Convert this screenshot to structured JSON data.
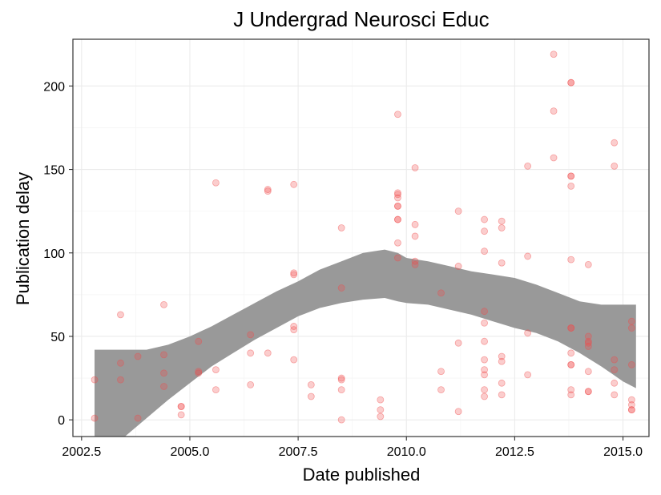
{
  "chart_data": {
    "type": "scatter",
    "title": "J Undergrad Neurosci Educ",
    "xlabel": "Date published",
    "ylabel": "Publication delay",
    "xlim": [
      2002.3,
      2015.6
    ],
    "ylim": [
      -10,
      228
    ],
    "x_ticks": [
      2002.5,
      2005.0,
      2007.5,
      2010.0,
      2012.5,
      2015.0
    ],
    "x_tick_labels": [
      "2002.5",
      "2005.0",
      "2007.5",
      "2010.0",
      "2012.5",
      "2015.0"
    ],
    "y_ticks": [
      0,
      50,
      100,
      150,
      200
    ],
    "y_tick_labels": [
      "0",
      "50",
      "100",
      "150",
      "200"
    ],
    "grid": true,
    "point_color": "#f04b4b",
    "band_color": "#999999",
    "points": [
      [
        2002.8,
        24
      ],
      [
        2002.8,
        1
      ],
      [
        2003.4,
        63
      ],
      [
        2003.4,
        24
      ],
      [
        2003.4,
        34
      ],
      [
        2003.8,
        38
      ],
      [
        2003.8,
        1
      ],
      [
        2004.4,
        69
      ],
      [
        2004.4,
        39
      ],
      [
        2004.4,
        28
      ],
      [
        2004.4,
        20
      ],
      [
        2004.8,
        8
      ],
      [
        2004.8,
        3
      ],
      [
        2004.8,
        8
      ],
      [
        2005.2,
        47
      ],
      [
        2005.2,
        29
      ],
      [
        2005.2,
        28
      ],
      [
        2005.6,
        142
      ],
      [
        2005.6,
        30
      ],
      [
        2005.6,
        18
      ],
      [
        2006.4,
        51
      ],
      [
        2006.4,
        40
      ],
      [
        2006.4,
        21
      ],
      [
        2006.8,
        138
      ],
      [
        2006.8,
        137
      ],
      [
        2006.8,
        40
      ],
      [
        2007.4,
        141
      ],
      [
        2007.4,
        88
      ],
      [
        2007.4,
        87
      ],
      [
        2007.4,
        56
      ],
      [
        2007.4,
        54
      ],
      [
        2007.4,
        36
      ],
      [
        2007.8,
        21
      ],
      [
        2007.8,
        14
      ],
      [
        2008.5,
        115
      ],
      [
        2008.5,
        79
      ],
      [
        2008.5,
        25
      ],
      [
        2008.5,
        24
      ],
      [
        2008.5,
        18
      ],
      [
        2008.5,
        0
      ],
      [
        2009.4,
        12
      ],
      [
        2009.4,
        6
      ],
      [
        2009.4,
        2
      ],
      [
        2009.8,
        183
      ],
      [
        2009.8,
        136
      ],
      [
        2009.8,
        135
      ],
      [
        2009.8,
        133
      ],
      [
        2009.8,
        128
      ],
      [
        2009.8,
        128
      ],
      [
        2009.8,
        120
      ],
      [
        2009.8,
        120
      ],
      [
        2009.8,
        106
      ],
      [
        2009.8,
        97
      ],
      [
        2010.2,
        151
      ],
      [
        2010.2,
        117
      ],
      [
        2010.2,
        110
      ],
      [
        2010.2,
        95
      ],
      [
        2010.2,
        93
      ],
      [
        2010.8,
        76
      ],
      [
        2010.8,
        29
      ],
      [
        2010.8,
        18
      ],
      [
        2011.2,
        125
      ],
      [
        2011.2,
        92
      ],
      [
        2011.2,
        46
      ],
      [
        2011.2,
        5
      ],
      [
        2011.8,
        120
      ],
      [
        2011.8,
        113
      ],
      [
        2011.8,
        101
      ],
      [
        2011.8,
        65
      ],
      [
        2011.8,
        58
      ],
      [
        2011.8,
        47
      ],
      [
        2011.8,
        36
      ],
      [
        2011.8,
        30
      ],
      [
        2011.8,
        27
      ],
      [
        2011.8,
        18
      ],
      [
        2011.8,
        14
      ],
      [
        2012.2,
        119
      ],
      [
        2012.2,
        115
      ],
      [
        2012.2,
        94
      ],
      [
        2012.2,
        38
      ],
      [
        2012.2,
        35
      ],
      [
        2012.2,
        22
      ],
      [
        2012.2,
        15
      ],
      [
        2012.8,
        152
      ],
      [
        2012.8,
        98
      ],
      [
        2012.8,
        52
      ],
      [
        2012.8,
        27
      ],
      [
        2013.4,
        219
      ],
      [
        2013.4,
        185
      ],
      [
        2013.4,
        157
      ],
      [
        2013.8,
        202
      ],
      [
        2013.8,
        202
      ],
      [
        2013.8,
        146
      ],
      [
        2013.8,
        146
      ],
      [
        2013.8,
        140
      ],
      [
        2013.8,
        96
      ],
      [
        2013.8,
        55
      ],
      [
        2013.8,
        55
      ],
      [
        2013.8,
        40
      ],
      [
        2013.8,
        33
      ],
      [
        2013.8,
        33
      ],
      [
        2013.8,
        18
      ],
      [
        2013.8,
        15
      ],
      [
        2014.2,
        93
      ],
      [
        2014.2,
        50
      ],
      [
        2014.2,
        47
      ],
      [
        2014.2,
        46
      ],
      [
        2014.2,
        44
      ],
      [
        2014.2,
        29
      ],
      [
        2014.2,
        17
      ],
      [
        2014.2,
        17
      ],
      [
        2014.8,
        166
      ],
      [
        2014.8,
        152
      ],
      [
        2014.8,
        36
      ],
      [
        2014.8,
        30
      ],
      [
        2014.8,
        22
      ],
      [
        2014.8,
        15
      ],
      [
        2015.2,
        59
      ],
      [
        2015.2,
        55
      ],
      [
        2015.2,
        33
      ],
      [
        2015.2,
        12
      ],
      [
        2015.2,
        9
      ],
      [
        2015.2,
        6
      ],
      [
        2015.2,
        6
      ]
    ],
    "band": {
      "x": [
        2002.8,
        2003.5,
        2004.0,
        2004.5,
        2005.0,
        2005.5,
        2006.0,
        2006.5,
        2007.0,
        2007.5,
        2008.0,
        2008.5,
        2009.0,
        2009.5,
        2009.8,
        2010.0,
        2010.5,
        2011.0,
        2011.5,
        2012.0,
        2012.5,
        2013.0,
        2013.5,
        2014.0,
        2014.5,
        2015.0,
        2015.3
      ],
      "upper": [
        42,
        42,
        42,
        45,
        50,
        56,
        63,
        70,
        77,
        83,
        90,
        95,
        100,
        102,
        100,
        97,
        95,
        92,
        89,
        87,
        85,
        81,
        76,
        71,
        69,
        69,
        69
      ],
      "lower": [
        -999,
        -18,
        1,
        12,
        22,
        32,
        40,
        48,
        55,
        62,
        67,
        70,
        72,
        73,
        71,
        70,
        69,
        66,
        63,
        59,
        55,
        52,
        47,
        40,
        32,
        23,
        19
      ]
    }
  }
}
